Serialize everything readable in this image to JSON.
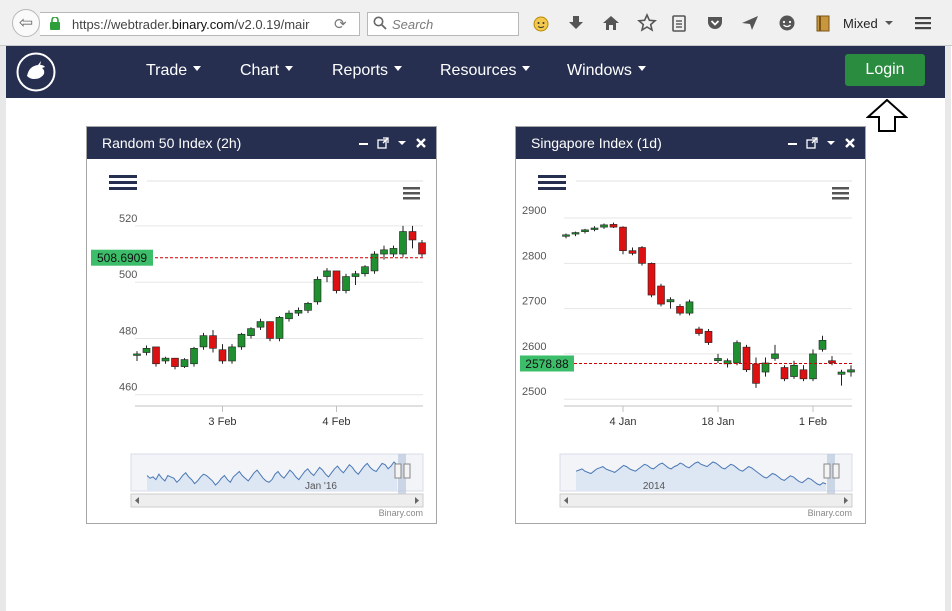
{
  "browser": {
    "url_prefix": "https://webtrader.",
    "url_host": "binary.com",
    "url_path": "/v2.0.19/mair",
    "search_placeholder": "Search",
    "profile_label": "Mixed"
  },
  "nav": {
    "items": [
      {
        "label": "Trade"
      },
      {
        "label": "Chart"
      },
      {
        "label": "Reports"
      },
      {
        "label": "Resources"
      },
      {
        "label": "Windows"
      }
    ],
    "login_label": "Login"
  },
  "colors": {
    "navbar": "#262f50",
    "login": "#2a8c3f",
    "up_candle": "#1f8f2f",
    "down_candle": "#dd1111",
    "price_tag": "#3cbd6a"
  },
  "windows": [
    {
      "title": "Random 50 Index (2h)",
      "credit": "Binary.com",
      "chart_data": {
        "type": "candlestick",
        "current_price": 508.6909,
        "current_price_label": "508.6909",
        "y_ticks": [
          "520",
          "500",
          "480",
          "460"
        ],
        "y_tick_values": [
          520,
          500,
          480,
          460
        ],
        "ylim": [
          456,
          526
        ],
        "x_ticks": [
          {
            "label": "3 Feb",
            "index": 9
          },
          {
            "label": "4 Feb",
            "index": 21
          }
        ],
        "navigator_label": "Jan '16",
        "candles": [
          [
            474,
            475.5,
            472,
            474.5
          ],
          [
            475,
            477.5,
            474,
            476.5
          ],
          [
            477,
            477,
            470,
            471
          ],
          [
            472,
            473.5,
            471,
            473
          ],
          [
            473,
            473,
            469,
            470
          ],
          [
            470,
            473,
            469.5,
            472.5
          ],
          [
            471,
            477,
            470,
            476.5
          ],
          [
            477,
            482,
            476,
            481
          ],
          [
            481,
            483,
            475,
            476.5
          ],
          [
            476,
            478,
            471,
            472
          ],
          [
            472,
            478,
            471,
            477
          ],
          [
            477,
            482,
            476,
            481.5
          ],
          [
            481,
            484,
            480,
            483.5
          ],
          [
            484,
            487,
            483,
            486
          ],
          [
            486,
            486,
            479,
            480
          ],
          [
            480,
            488,
            479,
            487.5
          ],
          [
            487,
            490,
            486,
            489
          ],
          [
            489,
            491,
            488,
            490
          ],
          [
            490,
            493,
            489,
            492.5
          ],
          [
            493,
            502,
            492,
            501
          ],
          [
            502,
            505,
            500,
            504
          ],
          [
            504,
            504,
            496,
            497
          ],
          [
            497,
            503,
            496,
            502
          ],
          [
            502,
            504,
            499,
            503
          ],
          [
            503,
            506,
            502,
            505.5
          ],
          [
            504,
            511,
            503,
            510
          ],
          [
            510,
            513,
            508,
            511.5
          ],
          [
            510,
            513,
            509,
            512
          ],
          [
            510,
            520,
            509,
            518
          ],
          [
            518,
            520,
            512,
            515
          ],
          [
            514,
            515,
            509,
            510
          ]
        ],
        "navigator_series": [
          52,
          50,
          51,
          49,
          53,
          50,
          48,
          52,
          51,
          50,
          47,
          49,
          52,
          54,
          51,
          49,
          46,
          48,
          51,
          53,
          52,
          50,
          48,
          45,
          47,
          50,
          52,
          49,
          47,
          51,
          53,
          55,
          52,
          50,
          48,
          51,
          54,
          56,
          53,
          50,
          48,
          47,
          49,
          53,
          55,
          52,
          50,
          53,
          56,
          54,
          51,
          49,
          52,
          55,
          57,
          54,
          52,
          55,
          58,
          56,
          53,
          51,
          54,
          57,
          59,
          56,
          54,
          57,
          60,
          58,
          55,
          53,
          56,
          59,
          61,
          58,
          56,
          55,
          58,
          61,
          60,
          57,
          59,
          62,
          60
        ]
      }
    },
    {
      "title": "Singapore Index (1d)",
      "credit": "Binary.com",
      "chart_data": {
        "type": "candlestick",
        "current_price": 2578.88,
        "current_price_label": "2578.88",
        "y_ticks": [
          "2900",
          "2800",
          "2700",
          "2600",
          "2500"
        ],
        "y_tick_values": [
          2900,
          2800,
          2700,
          2600,
          2500
        ],
        "ylim": [
          2485,
          2920
        ],
        "x_ticks": [
          {
            "label": "4 Jan",
            "index": 6
          },
          {
            "label": "18 Jan",
            "index": 16
          },
          {
            "label": "1 Feb",
            "index": 26
          }
        ],
        "navigator_label": "2014",
        "candles": [
          [
            2860,
            2866,
            2855,
            2863
          ],
          [
            2865,
            2870,
            2860,
            2868
          ],
          [
            2870,
            2876,
            2866,
            2874
          ],
          [
            2875,
            2882,
            2871,
            2878
          ],
          [
            2880,
            2888,
            2876,
            2885
          ],
          [
            2886,
            2890,
            2878,
            2880
          ],
          [
            2880,
            2882,
            2820,
            2828
          ],
          [
            2828,
            2835,
            2818,
            2822
          ],
          [
            2835,
            2838,
            2795,
            2800
          ],
          [
            2800,
            2802,
            2725,
            2730
          ],
          [
            2750,
            2755,
            2705,
            2710
          ],
          [
            2715,
            2725,
            2700,
            2720
          ],
          [
            2705,
            2710,
            2685,
            2690
          ],
          [
            2690,
            2720,
            2685,
            2715
          ],
          [
            2655,
            2660,
            2640,
            2645
          ],
          [
            2650,
            2655,
            2620,
            2625
          ],
          [
            2585,
            2600,
            2580,
            2590
          ],
          [
            2578,
            2590,
            2570,
            2585
          ],
          [
            2580,
            2630,
            2575,
            2625
          ],
          [
            2615,
            2620,
            2560,
            2565
          ],
          [
            2578,
            2592,
            2525,
            2535
          ],
          [
            2560,
            2592,
            2550,
            2580
          ],
          [
            2590,
            2620,
            2585,
            2600
          ],
          [
            2570,
            2575,
            2540,
            2545
          ],
          [
            2550,
            2585,
            2545,
            2575
          ],
          [
            2565,
            2575,
            2540,
            2545
          ],
          [
            2545,
            2610,
            2540,
            2600
          ],
          [
            2610,
            2640,
            2605,
            2630
          ],
          [
            2585,
            2595,
            2575,
            2580
          ],
          [
            2555,
            2565,
            2530,
            2560
          ],
          [
            2560,
            2575,
            2550,
            2565
          ]
        ],
        "navigator_series": [
          50,
          51,
          52,
          50,
          49,
          48,
          50,
          52,
          53,
          54,
          52,
          51,
          50,
          49,
          51,
          53,
          55,
          54,
          52,
          51,
          50,
          52,
          54,
          56,
          55,
          53,
          52,
          54,
          56,
          57,
          55,
          53,
          52,
          54,
          55,
          57,
          56,
          54,
          53,
          55,
          57,
          58,
          56,
          55,
          54,
          56,
          58,
          57,
          55,
          53,
          52,
          54,
          56,
          55,
          53,
          51,
          50,
          52,
          54,
          53,
          51,
          49,
          47,
          45,
          44,
          46,
          48,
          47,
          45,
          43,
          42,
          44,
          46,
          45,
          43,
          41,
          40,
          42,
          44,
          43,
          41,
          39,
          38,
          40,
          39
        ]
      }
    }
  ]
}
